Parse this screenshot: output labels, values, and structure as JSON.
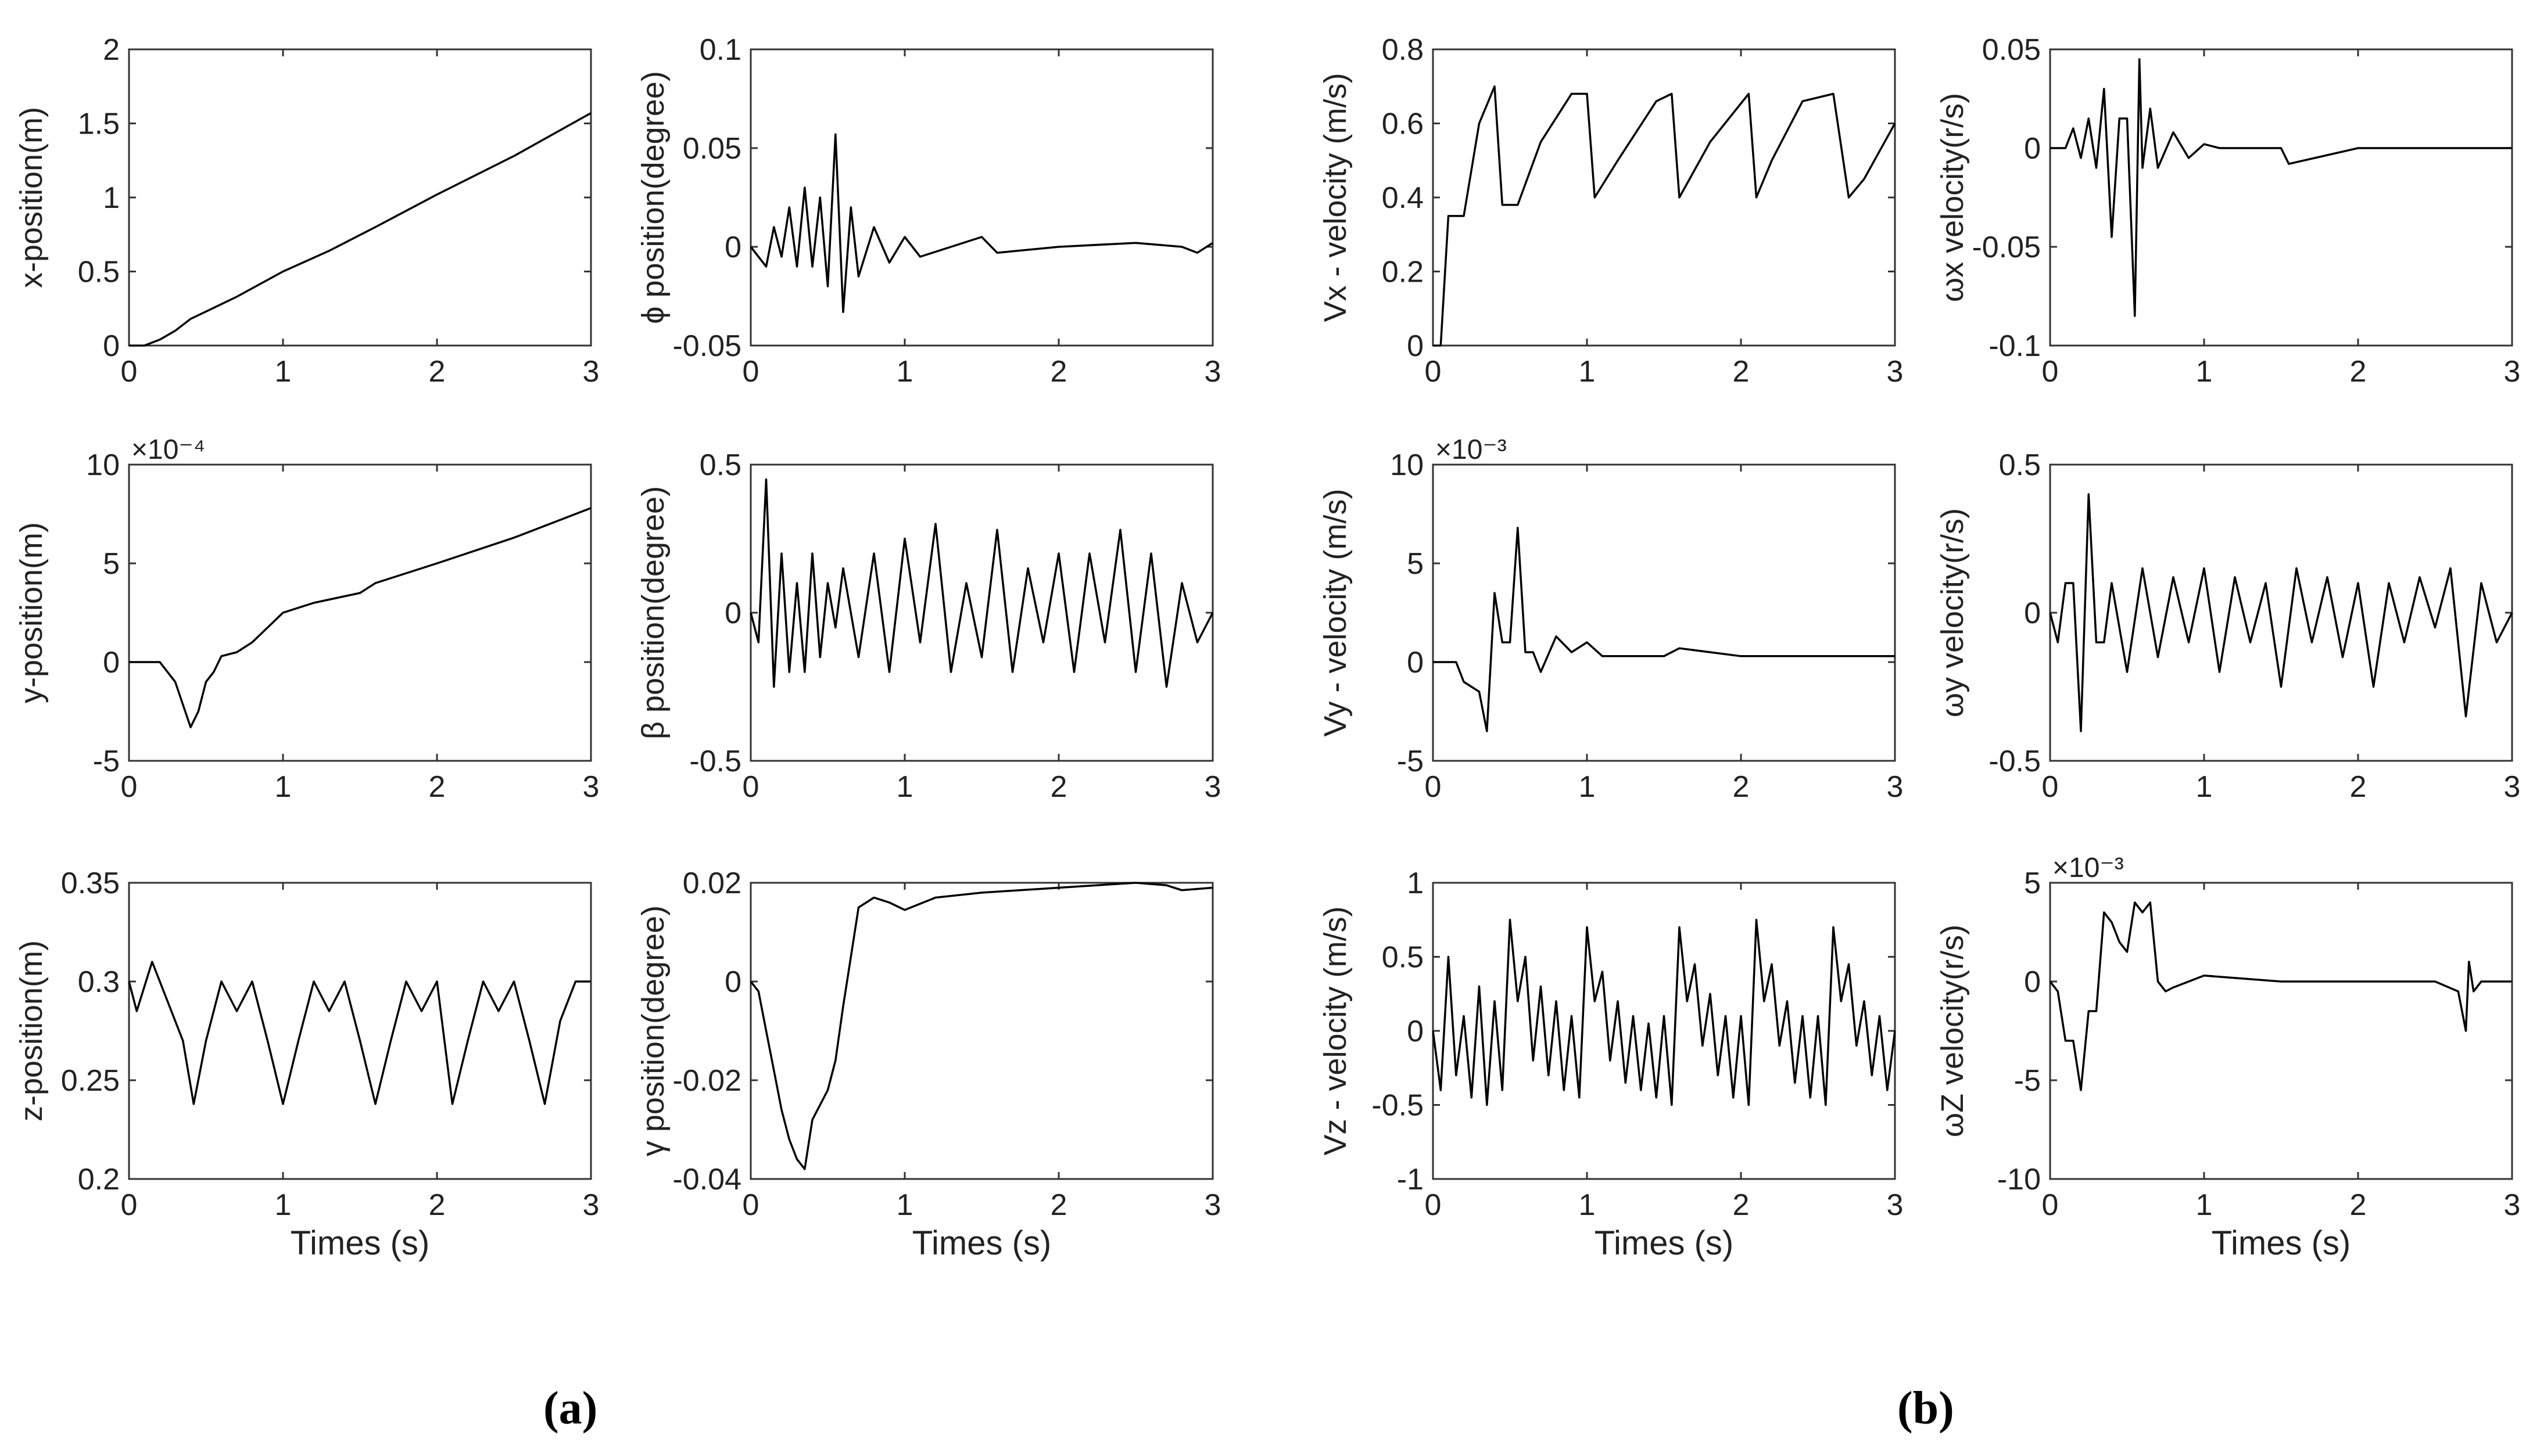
{
  "captions": {
    "a": "(a)",
    "b": "(b)"
  },
  "style": {
    "line_color": "#000000",
    "axis_color": "#333333",
    "text_color": "#222222"
  },
  "chart_data": [
    {
      "id": "x-pos",
      "type": "line",
      "title": "",
      "xlabel": "",
      "ylabel": "x-position(m)",
      "xlim": [
        0,
        3
      ],
      "ylim": [
        0,
        2
      ],
      "xticks": [
        "0",
        "1",
        "2",
        "3"
      ],
      "yticks": [
        "0",
        "0.5",
        "1",
        "1.5",
        "2"
      ],
      "exponent": "",
      "x": [
        0,
        0.1,
        0.2,
        0.3,
        0.4,
        0.5,
        0.7,
        1.0,
        1.3,
        1.6,
        2.0,
        2.5,
        3.0
      ],
      "values": [
        0,
        0,
        0.04,
        0.1,
        0.18,
        0.23,
        0.33,
        0.5,
        0.64,
        0.8,
        1.02,
        1.28,
        1.57
      ]
    },
    {
      "id": "phi-pos",
      "type": "line",
      "title": "",
      "xlabel": "",
      "ylabel": "ϕ position(degree)",
      "xlim": [
        0,
        3
      ],
      "ylim": [
        -0.05,
        0.1
      ],
      "xticks": [
        "0",
        "1",
        "2",
        "3"
      ],
      "yticks": [
        "-0.05",
        "0",
        "0.05",
        "0.1"
      ],
      "exponent": "",
      "x": [
        0,
        0.1,
        0.15,
        0.2,
        0.25,
        0.3,
        0.35,
        0.4,
        0.45,
        0.5,
        0.55,
        0.6,
        0.65,
        0.7,
        0.8,
        0.9,
        1.0,
        1.1,
        1.5,
        1.6,
        2.0,
        2.5,
        2.8,
        2.9,
        3.0
      ],
      "values": [
        0,
        -0.01,
        0.01,
        -0.005,
        0.02,
        -0.01,
        0.03,
        -0.01,
        0.025,
        -0.02,
        0.057,
        -0.033,
        0.02,
        -0.015,
        0.01,
        -0.008,
        0.005,
        -0.005,
        0.005,
        -0.003,
        0.0,
        0.002,
        0.0,
        -0.003,
        0.002
      ]
    },
    {
      "id": "vx-vel",
      "type": "line",
      "title": "",
      "xlabel": "",
      "ylabel": "Vx - velocity (m/s)",
      "xlim": [
        0,
        3
      ],
      "ylim": [
        0,
        0.8
      ],
      "xticks": [
        "0",
        "1",
        "2",
        "3"
      ],
      "yticks": [
        "0",
        "0.2",
        "0.4",
        "0.6",
        "0.8"
      ],
      "exponent": "",
      "x": [
        0,
        0.05,
        0.1,
        0.2,
        0.3,
        0.4,
        0.45,
        0.55,
        0.7,
        0.9,
        1.0,
        1.05,
        1.2,
        1.45,
        1.55,
        1.6,
        1.8,
        2.05,
        2.1,
        2.2,
        2.4,
        2.6,
        2.7,
        2.8,
        3.0
      ],
      "values": [
        0,
        0,
        0.35,
        0.35,
        0.6,
        0.7,
        0.38,
        0.38,
        0.55,
        0.68,
        0.68,
        0.4,
        0.5,
        0.66,
        0.68,
        0.4,
        0.55,
        0.68,
        0.4,
        0.5,
        0.66,
        0.68,
        0.4,
        0.45,
        0.6
      ]
    },
    {
      "id": "wx-vel",
      "type": "line",
      "title": "",
      "xlabel": "",
      "ylabel": "ωx velocity(r/s)",
      "xlim": [
        0,
        3
      ],
      "ylim": [
        -0.1,
        0.05
      ],
      "xticks": [
        "0",
        "1",
        "2",
        "3"
      ],
      "yticks": [
        "-0.1",
        "-0.05",
        "0",
        "0.05"
      ],
      "exponent": "",
      "x": [
        0,
        0.1,
        0.15,
        0.2,
        0.25,
        0.3,
        0.35,
        0.4,
        0.45,
        0.5,
        0.55,
        0.58,
        0.6,
        0.65,
        0.7,
        0.8,
        0.9,
        1.0,
        1.1,
        1.5,
        1.55,
        2.0,
        2.5,
        3.0
      ],
      "values": [
        0,
        0,
        0.01,
        -0.005,
        0.015,
        -0.01,
        0.03,
        -0.045,
        0.015,
        0.015,
        -0.085,
        0.045,
        -0.01,
        0.02,
        -0.01,
        0.008,
        -0.005,
        0.002,
        0.0,
        0.0,
        -0.008,
        0.0,
        0.0,
        0.0
      ]
    },
    {
      "id": "y-pos",
      "type": "line",
      "title": "",
      "xlabel": "",
      "ylabel": "y-position(m)",
      "xlim": [
        0,
        3
      ],
      "ylim": [
        -5,
        10
      ],
      "xticks": [
        "0",
        "1",
        "2",
        "3"
      ],
      "yticks": [
        "-5",
        "0",
        "5",
        "10"
      ],
      "exponent": "×10⁻⁴",
      "x": [
        0,
        0.1,
        0.2,
        0.3,
        0.4,
        0.45,
        0.5,
        0.55,
        0.6,
        0.7,
        0.8,
        1.0,
        1.2,
        1.5,
        1.6,
        2.0,
        2.5,
        3.0
      ],
      "values": [
        0,
        0,
        0,
        -1,
        -3.3,
        -2.5,
        -1,
        -0.5,
        0.3,
        0.5,
        1,
        2.5,
        3,
        3.5,
        4,
        5,
        6.3,
        7.8
      ]
    },
    {
      "id": "beta-pos",
      "type": "line",
      "title": "",
      "xlabel": "",
      "ylabel": "β position(degree)",
      "xlim": [
        0,
        3
      ],
      "ylim": [
        -0.5,
        0.5
      ],
      "xticks": [
        "0",
        "1",
        "2",
        "3"
      ],
      "yticks": [
        "-0.5",
        "0",
        "0.5"
      ],
      "exponent": "",
      "x": [
        0,
        0.05,
        0.1,
        0.15,
        0.2,
        0.25,
        0.3,
        0.35,
        0.4,
        0.45,
        0.5,
        0.55,
        0.6,
        0.7,
        0.8,
        0.9,
        1.0,
        1.1,
        1.2,
        1.3,
        1.4,
        1.5,
        1.6,
        1.7,
        1.8,
        1.9,
        2.0,
        2.1,
        2.2,
        2.3,
        2.4,
        2.5,
        2.6,
        2.7,
        2.8,
        2.9,
        3.0
      ],
      "values": [
        0,
        -0.1,
        0.45,
        -0.25,
        0.2,
        -0.2,
        0.1,
        -0.2,
        0.2,
        -0.15,
        0.1,
        -0.05,
        0.15,
        -0.15,
        0.2,
        -0.2,
        0.25,
        -0.1,
        0.3,
        -0.2,
        0.1,
        -0.15,
        0.28,
        -0.2,
        0.15,
        -0.1,
        0.2,
        -0.2,
        0.2,
        -0.1,
        0.28,
        -0.2,
        0.2,
        -0.25,
        0.1,
        -0.1,
        0.0
      ]
    },
    {
      "id": "vy-vel",
      "type": "line",
      "title": "",
      "xlabel": "",
      "ylabel": "Vy - velocity (m/s)",
      "xlim": [
        0,
        3
      ],
      "ylim": [
        -5,
        10
      ],
      "xticks": [
        "0",
        "1",
        "2",
        "3"
      ],
      "yticks": [
        "-5",
        "0",
        "5",
        "10"
      ],
      "exponent": "×10⁻³",
      "x": [
        0,
        0.15,
        0.2,
        0.3,
        0.35,
        0.4,
        0.45,
        0.5,
        0.55,
        0.6,
        0.65,
        0.7,
        0.8,
        0.9,
        1.0,
        1.1,
        1.5,
        1.6,
        2.0,
        2.5,
        3.0
      ],
      "values": [
        0,
        0,
        -1,
        -1.5,
        -3.5,
        3.5,
        1,
        1,
        6.8,
        0.5,
        0.5,
        -0.5,
        1.3,
        0.5,
        1,
        0.3,
        0.3,
        0.7,
        0.3,
        0.3,
        0.3
      ]
    },
    {
      "id": "wy-vel",
      "type": "line",
      "title": "",
      "xlabel": "",
      "ylabel": "ωy velocity(r/s)",
      "xlim": [
        0,
        3
      ],
      "ylim": [
        -0.5,
        0.5
      ],
      "xticks": [
        "0",
        "1",
        "2",
        "3"
      ],
      "yticks": [
        "-0.5",
        "0",
        "0.5"
      ],
      "exponent": "",
      "x": [
        0,
        0.05,
        0.1,
        0.15,
        0.2,
        0.25,
        0.3,
        0.35,
        0.4,
        0.5,
        0.6,
        0.7,
        0.8,
        0.9,
        1.0,
        1.1,
        1.2,
        1.3,
        1.4,
        1.5,
        1.6,
        1.7,
        1.8,
        1.9,
        2.0,
        2.1,
        2.2,
        2.3,
        2.4,
        2.5,
        2.6,
        2.7,
        2.8,
        2.9,
        3.0
      ],
      "values": [
        0,
        -0.1,
        0.1,
        0.1,
        -0.4,
        0.4,
        -0.1,
        -0.1,
        0.1,
        -0.2,
        0.15,
        -0.15,
        0.12,
        -0.1,
        0.15,
        -0.2,
        0.12,
        -0.1,
        0.1,
        -0.25,
        0.15,
        -0.1,
        0.12,
        -0.15,
        0.1,
        -0.25,
        0.1,
        -0.1,
        0.12,
        -0.05,
        0.15,
        -0.35,
        0.1,
        -0.1,
        0.0
      ]
    },
    {
      "id": "z-pos",
      "type": "line",
      "title": "",
      "xlabel": "Times (s)",
      "ylabel": "z-position(m)",
      "xlim": [
        0,
        3
      ],
      "ylim": [
        0.2,
        0.35
      ],
      "xticks": [
        "0",
        "1",
        "2",
        "3"
      ],
      "yticks": [
        "0.2",
        "0.25",
        "0.3",
        "0.35"
      ],
      "exponent": "",
      "x": [
        0,
        0.05,
        0.15,
        0.25,
        0.35,
        0.42,
        0.5,
        0.6,
        0.7,
        0.8,
        0.9,
        1.0,
        1.1,
        1.2,
        1.3,
        1.4,
        1.5,
        1.6,
        1.7,
        1.8,
        1.9,
        2.0,
        2.1,
        2.2,
        2.3,
        2.4,
        2.5,
        2.6,
        2.7,
        2.8,
        2.9,
        3.0
      ],
      "values": [
        0.3,
        0.285,
        0.31,
        0.29,
        0.27,
        0.238,
        0.27,
        0.3,
        0.285,
        0.3,
        0.27,
        0.238,
        0.27,
        0.3,
        0.285,
        0.3,
        0.27,
        0.238,
        0.27,
        0.3,
        0.285,
        0.3,
        0.238,
        0.27,
        0.3,
        0.285,
        0.3,
        0.27,
        0.238,
        0.28,
        0.3,
        0.3
      ]
    },
    {
      "id": "gamma-pos",
      "type": "line",
      "title": "",
      "xlabel": "Times (s)",
      "ylabel": "γ position(degree)",
      "xlim": [
        0,
        3
      ],
      "ylim": [
        -0.04,
        0.02
      ],
      "xticks": [
        "0",
        "1",
        "2",
        "3"
      ],
      "yticks": [
        "-0.04",
        "-0.02",
        "0",
        "0.02"
      ],
      "exponent": "",
      "x": [
        0,
        0.05,
        0.1,
        0.15,
        0.2,
        0.25,
        0.3,
        0.35,
        0.4,
        0.5,
        0.55,
        0.6,
        0.65,
        0.7,
        0.8,
        0.9,
        1.0,
        1.2,
        1.5,
        2.0,
        2.5,
        2.7,
        2.8,
        3.0
      ],
      "values": [
        0,
        -0.002,
        -0.01,
        -0.018,
        -0.026,
        -0.032,
        -0.036,
        -0.038,
        -0.028,
        -0.022,
        -0.016,
        -0.005,
        0.005,
        0.015,
        0.017,
        0.016,
        0.0145,
        0.017,
        0.018,
        0.019,
        0.02,
        0.0195,
        0.0185,
        0.019
      ]
    },
    {
      "id": "vz-vel",
      "type": "line",
      "title": "",
      "xlabel": "Times (s)",
      "ylabel": "Vz - velocity (m/s)",
      "xlim": [
        0,
        3
      ],
      "ylim": [
        -1,
        1
      ],
      "xticks": [
        "0",
        "1",
        "2",
        "3"
      ],
      "yticks": [
        "-1",
        "-0.5",
        "0",
        "0.5",
        "1"
      ],
      "exponent": "",
      "x": [
        0,
        0.05,
        0.1,
        0.15,
        0.2,
        0.25,
        0.3,
        0.35,
        0.4,
        0.45,
        0.5,
        0.55,
        0.6,
        0.65,
        0.7,
        0.75,
        0.8,
        0.85,
        0.9,
        0.95,
        1.0,
        1.05,
        1.1,
        1.15,
        1.2,
        1.25,
        1.3,
        1.35,
        1.4,
        1.45,
        1.5,
        1.55,
        1.6,
        1.65,
        1.7,
        1.75,
        1.8,
        1.85,
        1.9,
        1.95,
        2.0,
        2.05,
        2.1,
        2.15,
        2.2,
        2.25,
        2.3,
        2.35,
        2.4,
        2.45,
        2.5,
        2.55,
        2.6,
        2.65,
        2.7,
        2.75,
        2.8,
        2.85,
        2.9,
        2.95,
        3.0
      ],
      "values": [
        0,
        -0.4,
        0.5,
        -0.3,
        0.1,
        -0.45,
        0.3,
        -0.5,
        0.2,
        -0.4,
        0.75,
        0.2,
        0.5,
        -0.2,
        0.3,
        -0.3,
        0.2,
        -0.4,
        0.1,
        -0.45,
        0.7,
        0.2,
        0.4,
        -0.2,
        0.2,
        -0.35,
        0.1,
        -0.4,
        0.05,
        -0.45,
        0.1,
        -0.5,
        0.7,
        0.2,
        0.45,
        -0.1,
        0.25,
        -0.3,
        0.1,
        -0.45,
        0.1,
        -0.5,
        0.75,
        0.2,
        0.45,
        -0.1,
        0.2,
        -0.35,
        0.1,
        -0.45,
        0.1,
        -0.5,
        0.7,
        0.2,
        0.45,
        -0.1,
        0.2,
        -0.3,
        0.1,
        -0.4,
        0.0
      ]
    },
    {
      "id": "wz-vel",
      "type": "line",
      "title": "",
      "xlabel": "Times (s)",
      "ylabel": "ωZ velocity(r/s)",
      "xlim": [
        0,
        3
      ],
      "ylim": [
        -10,
        5
      ],
      "xticks": [
        "0",
        "1",
        "2",
        "3"
      ],
      "yticks": [
        "-10",
        "-5",
        "0",
        "5"
      ],
      "exponent": "×10⁻³",
      "x": [
        0,
        0.05,
        0.1,
        0.15,
        0.2,
        0.25,
        0.3,
        0.35,
        0.4,
        0.45,
        0.5,
        0.55,
        0.6,
        0.65,
        0.7,
        0.75,
        0.8,
        0.9,
        1.0,
        1.5,
        2.0,
        2.5,
        2.65,
        2.7,
        2.72,
        2.75,
        2.8,
        3.0
      ],
      "values": [
        0,
        -0.5,
        -3,
        -3,
        -5.5,
        -1.5,
        -1.5,
        3.5,
        3,
        2,
        1.5,
        4,
        3.5,
        4,
        0,
        -0.5,
        -0.3,
        0,
        0.3,
        0,
        0,
        0,
        -0.5,
        -2.5,
        1,
        -0.5,
        0,
        0
      ]
    }
  ]
}
